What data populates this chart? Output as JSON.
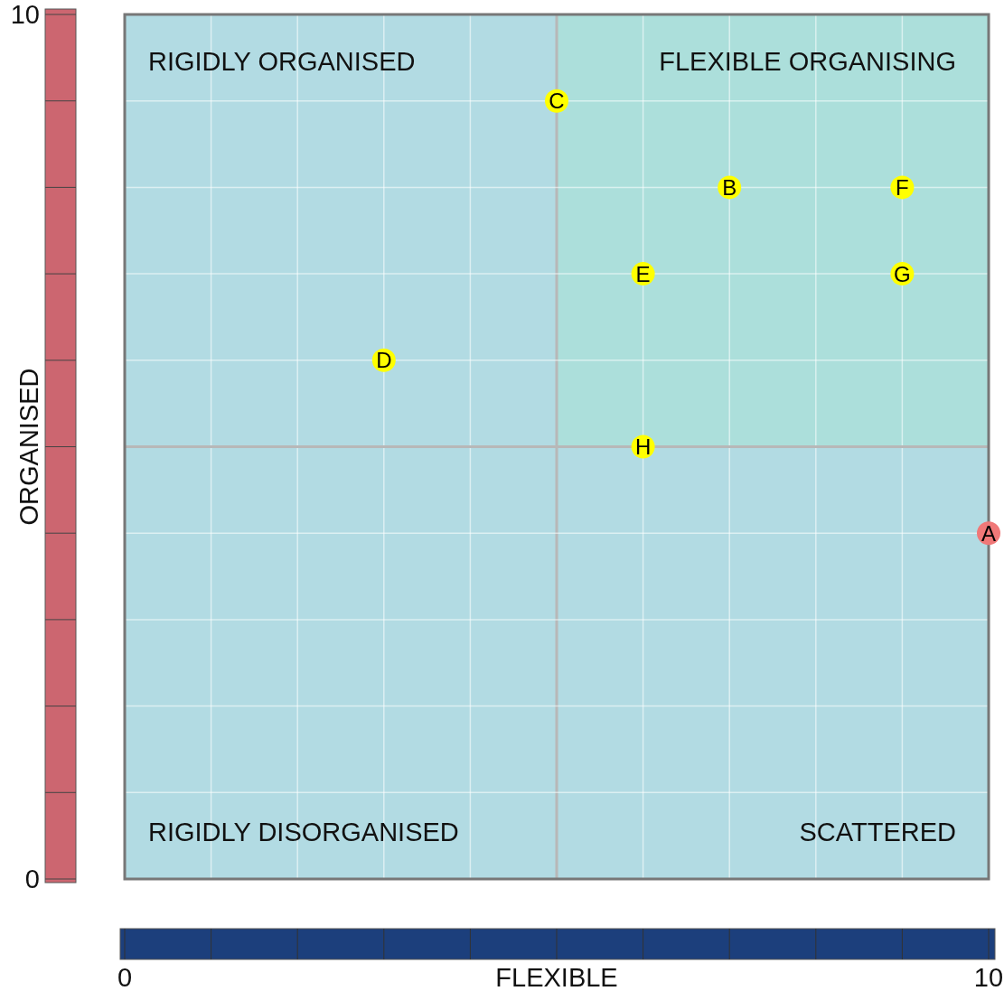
{
  "chart_data": {
    "type": "scatter",
    "xlabel": "FLEXIBLE",
    "ylabel": "ORGANISED",
    "xlim": [
      0,
      10
    ],
    "ylim": [
      0,
      10
    ],
    "xticks": [
      0,
      {
        "value": 1,
        "label": null
      },
      {
        "value": 2,
        "label": null
      },
      {
        "value": 3,
        "label": null
      },
      {
        "value": 4,
        "label": null
      },
      {
        "value": 5,
        "label": null
      },
      {
        "value": 6,
        "label": null
      },
      {
        "value": 7,
        "label": null
      },
      {
        "value": 8,
        "label": null
      },
      {
        "value": 9,
        "label": null
      },
      10
    ],
    "yticks": [
      0,
      {
        "value": 1,
        "label": null
      },
      {
        "value": 2,
        "label": null
      },
      {
        "value": 3,
        "label": null
      },
      {
        "value": 4,
        "label": null
      },
      {
        "value": 5,
        "label": null
      },
      {
        "value": 6,
        "label": null
      },
      {
        "value": 7,
        "label": null
      },
      {
        "value": 8,
        "label": null
      },
      {
        "value": 9,
        "label": null
      },
      10
    ],
    "grid": true,
    "marker": "circle",
    "series": [
      {
        "color": "#ffff00",
        "x": [
          5,
          7,
          9,
          6,
          9,
          3,
          6
        ],
        "values": [
          9,
          8,
          8,
          7,
          7,
          6,
          5
        ],
        "value_labels": [
          "C",
          "B",
          "F",
          "E",
          "G",
          "D",
          "H"
        ]
      },
      {
        "color": "#f07878",
        "x": [
          10
        ],
        "values": [
          4
        ],
        "value_labels": [
          "A"
        ]
      }
    ],
    "annotations": [
      "RIGIDLY ORGANISED",
      "FLEXIBLE ORGANISING",
      "RIGIDLY DISORGANISED",
      "SCATTERED"
    ]
  }
}
